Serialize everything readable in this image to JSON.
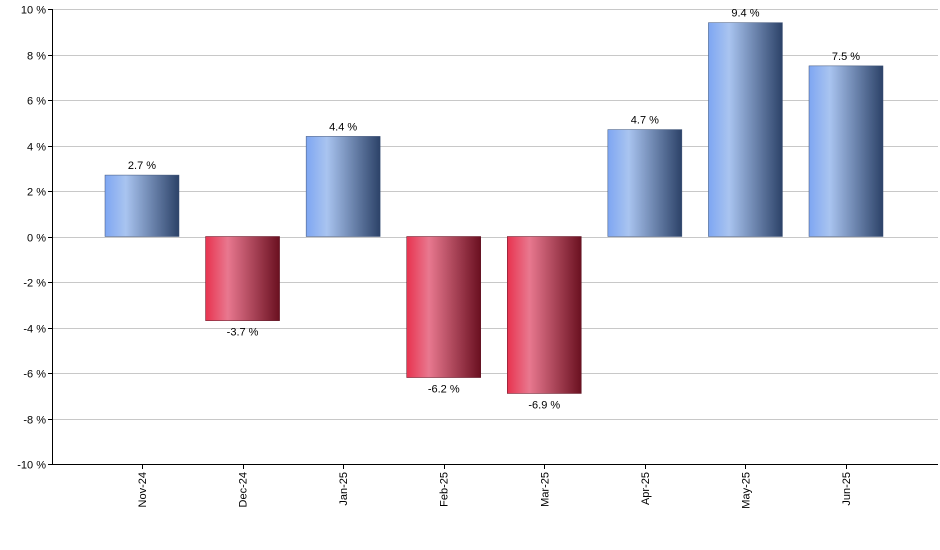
{
  "chart_data": {
    "type": "bar",
    "categories": [
      "Nov-24",
      "Dec-24",
      "Jan-25",
      "Feb-25",
      "Mar-25",
      "Apr-25",
      "May-25",
      "Jun-25"
    ],
    "values": [
      2.7,
      -3.7,
      4.4,
      -6.2,
      -6.9,
      4.7,
      9.4,
      7.5
    ],
    "data_labels": [
      "2.7 %",
      "-3.7 %",
      "4.4 %",
      "-6.2 %",
      "-6.9 %",
      "4.7 %",
      "9.4 %",
      "7.5 %"
    ],
    "y_ticks": [
      10,
      8,
      6,
      4,
      2,
      0,
      -2,
      -4,
      -6,
      -8,
      -10
    ],
    "y_tick_labels": [
      "10 %",
      "8 %",
      "6 %",
      "4 %",
      "2 %",
      "0 %",
      "-2 %",
      "-4 %",
      "-6 %",
      "-8 %",
      "-10 %"
    ],
    "ylim": [
      -10,
      10
    ],
    "grid": true,
    "legend": "none",
    "colors": {
      "positive_light": "#8fb4f5",
      "positive_mid": "#a9c4f0",
      "positive_dark": "#2c4268",
      "negative_light": "#e8334f",
      "negative_mid": "#e8788f",
      "negative_dark": "#6a1020",
      "grid": "#c8c8c8",
      "axis": "#000000"
    }
  }
}
